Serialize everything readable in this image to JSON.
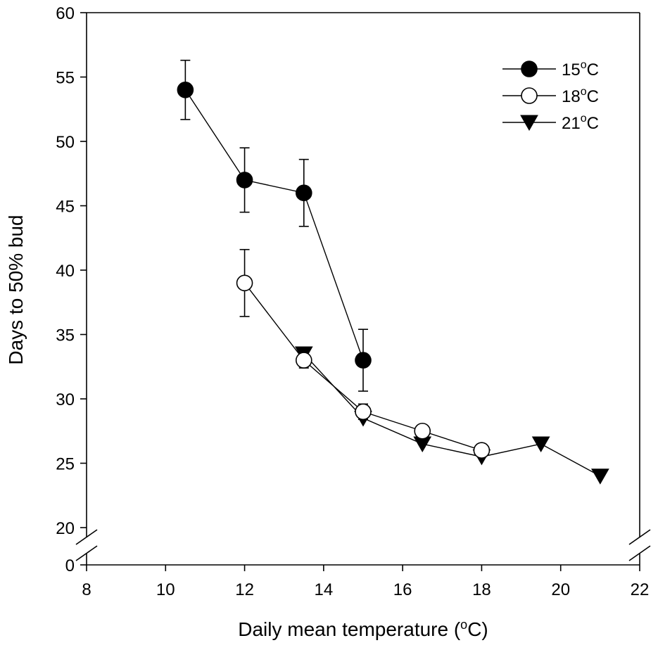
{
  "chart_data": {
    "type": "line",
    "xlabel": "Daily mean temperature (",
    "xlabel_sup": "o",
    "xlabel_end": "C)",
    "ylabel": "Days to 50% bud",
    "xlim": [
      8,
      22
    ],
    "x_ticks": [
      "8",
      "10",
      "12",
      "14",
      "16",
      "18",
      "20",
      "22"
    ],
    "ylim_upper": [
      20,
      60
    ],
    "y_ticks": [
      "60",
      "55",
      "50",
      "45",
      "40",
      "35",
      "30",
      "25",
      "20"
    ],
    "y_break_low_label": "0",
    "axis_break": "y between 0 and 20",
    "legend_position": "top-right",
    "series": [
      {
        "name": "15",
        "name_sup": "o",
        "name_unit": "C",
        "marker": "filled-circle",
        "points": [
          {
            "x": 10.5,
            "y": 54,
            "err": 2.3
          },
          {
            "x": 12,
            "y": 47,
            "err": 2.5
          },
          {
            "x": 13.5,
            "y": 46,
            "err": 2.6
          },
          {
            "x": 15,
            "y": 33,
            "err": 2.4
          }
        ]
      },
      {
        "name": "18",
        "name_sup": "o",
        "name_unit": "C",
        "marker": "open-circle",
        "points": [
          {
            "x": 12,
            "y": 39,
            "err": 2.6
          },
          {
            "x": 13.5,
            "y": 33,
            "err": 0.6
          },
          {
            "x": 15,
            "y": 29,
            "err": 0.6
          },
          {
            "x": 16.5,
            "y": 27.5,
            "err": 0
          },
          {
            "x": 18,
            "y": 26,
            "err": 0
          }
        ]
      },
      {
        "name": "21",
        "name_sup": "o",
        "name_unit": "C",
        "marker": "filled-triangle-down",
        "points": [
          {
            "x": 13.5,
            "y": 33.5,
            "err": 0
          },
          {
            "x": 15,
            "y": 28.5,
            "err": 0
          },
          {
            "x": 16.5,
            "y": 26.5,
            "err": 0
          },
          {
            "x": 18,
            "y": 25.5,
            "err": 0
          },
          {
            "x": 19.5,
            "y": 26.5,
            "err": 0
          },
          {
            "x": 21,
            "y": 24,
            "err": 0
          }
        ]
      }
    ]
  }
}
